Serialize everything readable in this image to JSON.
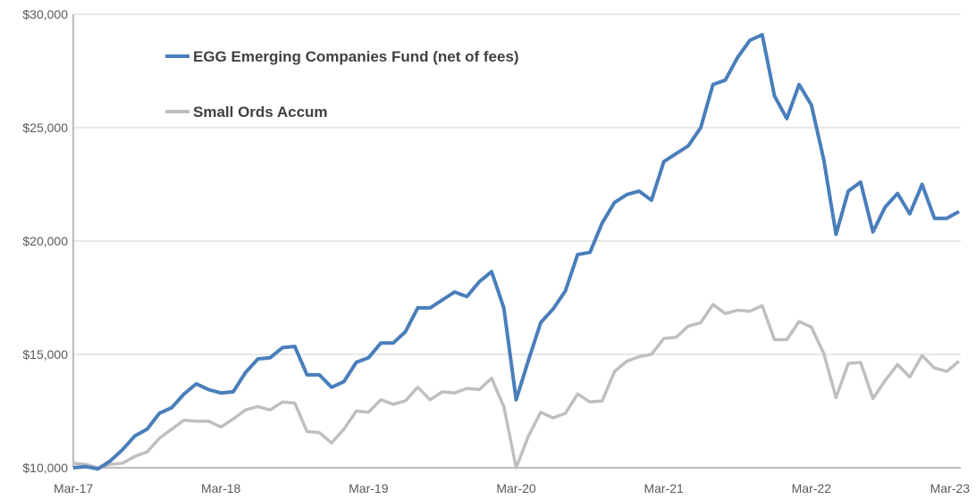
{
  "chart_data": {
    "type": "line",
    "title": "",
    "xlabel": "",
    "ylabel": "",
    "ylim": [
      10000,
      30000
    ],
    "yticks": [
      10000,
      15000,
      20000,
      25000,
      30000
    ],
    "ytick_labels": [
      "$10,000",
      "$15,000",
      "$20,000",
      "$25,000",
      "$30,000"
    ],
    "xtick_labels": [
      "Mar-17",
      "Mar-18",
      "Mar-19",
      "Mar-20",
      "Mar-21",
      "Mar-22",
      "Mar-23"
    ],
    "xtick_index": [
      0,
      12,
      24,
      36,
      48,
      60,
      72
    ],
    "x_note": "monthly points, Mar-17 to Mar-23",
    "grid": true,
    "legend_placement": "top-left",
    "series": [
      {
        "name": "EGG Emerging Companies Fund (net of fees)",
        "color": "#4A7EBB",
        "values": [
          10000,
          10050,
          9950,
          10300,
          10800,
          11400,
          11700,
          12400,
          12650,
          13250,
          13700,
          13450,
          13300,
          13350,
          14200,
          14800,
          14850,
          15300,
          15350,
          14100,
          14100,
          13550,
          13800,
          14650,
          14850,
          15500,
          15500,
          16000,
          17050,
          17050,
          17400,
          17750,
          17550,
          18200,
          18650,
          17050,
          13000,
          14750,
          16400,
          17000,
          17800,
          19400,
          19500,
          20800,
          21700,
          22050,
          22200,
          21800,
          23500,
          23850,
          24200,
          25000,
          26900,
          27100,
          28100,
          28850,
          29100,
          26400,
          25400,
          26900,
          26000,
          23600,
          20300,
          22200,
          22600,
          20400,
          21500,
          22100,
          21200,
          22500,
          21000,
          21000,
          21300
        ]
      },
      {
        "name": "Small Ords Accum",
        "color": "#BFBFBF",
        "values": [
          10200,
          10150,
          10000,
          10150,
          10200,
          10500,
          10700,
          11300,
          11700,
          12100,
          12050,
          12050,
          11800,
          12150,
          12550,
          12700,
          12550,
          12900,
          12850,
          11600,
          11550,
          11100,
          11700,
          12500,
          12450,
          13000,
          12800,
          12950,
          13550,
          13000,
          13350,
          13300,
          13500,
          13450,
          13950,
          12700,
          10000,
          11400,
          12450,
          12200,
          12400,
          13250,
          12900,
          12950,
          14250,
          14700,
          14900,
          15000,
          15700,
          15750,
          16250,
          16400,
          17200,
          16800,
          16950,
          16900,
          17150,
          15650,
          15650,
          16450,
          16200,
          15050,
          13100,
          14600,
          14650,
          13050,
          13850,
          14550,
          14000,
          14950,
          14400,
          14250,
          14700
        ]
      }
    ]
  }
}
